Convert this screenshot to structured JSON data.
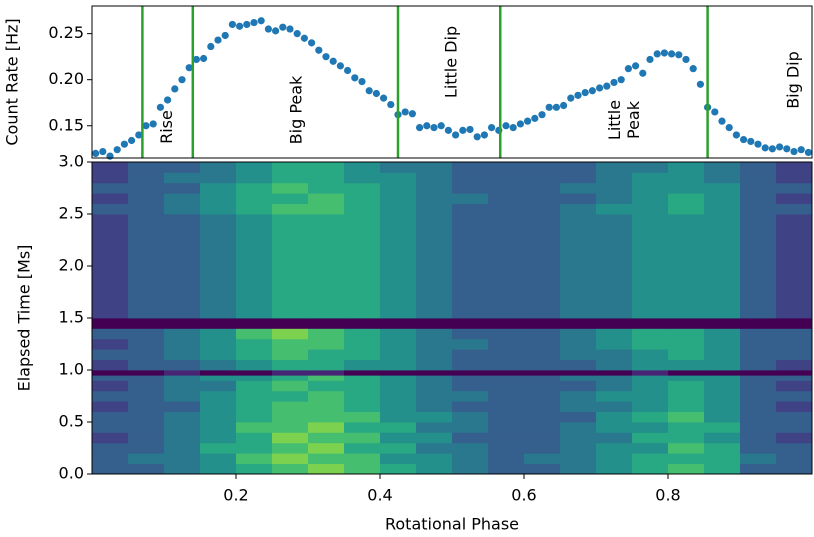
{
  "chart_data": [
    {
      "type": "scatter",
      "ylabel": "Count Rate [Hz]",
      "color": "#1f77b4",
      "x": [
        0.005,
        0.015,
        0.025,
        0.035,
        0.045,
        0.055,
        0.065,
        0.075,
        0.085,
        0.095,
        0.105,
        0.115,
        0.125,
        0.135,
        0.145,
        0.155,
        0.165,
        0.175,
        0.185,
        0.195,
        0.205,
        0.215,
        0.225,
        0.235,
        0.245,
        0.255,
        0.265,
        0.275,
        0.285,
        0.295,
        0.305,
        0.315,
        0.325,
        0.335,
        0.345,
        0.355,
        0.365,
        0.375,
        0.385,
        0.395,
        0.405,
        0.415,
        0.425,
        0.435,
        0.445,
        0.455,
        0.465,
        0.475,
        0.485,
        0.495,
        0.505,
        0.515,
        0.525,
        0.535,
        0.545,
        0.555,
        0.565,
        0.575,
        0.585,
        0.595,
        0.605,
        0.615,
        0.625,
        0.635,
        0.645,
        0.655,
        0.665,
        0.675,
        0.685,
        0.695,
        0.705,
        0.715,
        0.725,
        0.735,
        0.745,
        0.755,
        0.765,
        0.775,
        0.785,
        0.795,
        0.805,
        0.815,
        0.825,
        0.835,
        0.845,
        0.855,
        0.865,
        0.875,
        0.885,
        0.895,
        0.905,
        0.915,
        0.925,
        0.935,
        0.945,
        0.955,
        0.965,
        0.975,
        0.985,
        0.995
      ],
      "values": [
        0.12,
        0.122,
        0.117,
        0.124,
        0.13,
        0.134,
        0.14,
        0.15,
        0.152,
        0.17,
        0.178,
        0.19,
        0.2,
        0.213,
        0.222,
        0.223,
        0.236,
        0.243,
        0.248,
        0.26,
        0.258,
        0.26,
        0.262,
        0.264,
        0.255,
        0.253,
        0.257,
        0.255,
        0.25,
        0.245,
        0.24,
        0.232,
        0.225,
        0.22,
        0.215,
        0.21,
        0.202,
        0.198,
        0.188,
        0.185,
        0.18,
        0.173,
        0.162,
        0.165,
        0.163,
        0.148,
        0.15,
        0.148,
        0.15,
        0.145,
        0.14,
        0.145,
        0.146,
        0.138,
        0.14,
        0.148,
        0.145,
        0.15,
        0.148,
        0.152,
        0.155,
        0.158,
        0.162,
        0.17,
        0.17,
        0.172,
        0.18,
        0.183,
        0.186,
        0.188,
        0.191,
        0.193,
        0.197,
        0.2,
        0.212,
        0.215,
        0.207,
        0.222,
        0.228,
        0.229,
        0.228,
        0.227,
        0.222,
        0.212,
        0.195,
        0.17,
        0.165,
        0.155,
        0.148,
        0.14,
        0.135,
        0.133,
        0.13,
        0.126,
        0.125,
        0.127,
        0.125,
        0.122,
        0.124,
        0.121
      ],
      "xlim": [
        0,
        1
      ],
      "ylim": [
        0.115,
        0.28
      ],
      "yticks": [
        0.15,
        {
          "value": 0.2,
          "label": "0.20"
        },
        0.25
      ],
      "vlines": [
        0.07,
        0.14,
        0.425,
        0.567,
        0.855
      ],
      "vline_color": "#2ca02c",
      "annotations": [
        [
          "Rise"
        ],
        [
          "Big Peak"
        ],
        [
          "Little Dip"
        ],
        [
          "Little",
          "Peak"
        ],
        [
          "Big Dip"
        ]
      ]
    },
    {
      "type": "heatmap",
      "ylabel": "Elapsed Time [Ms]",
      "xlabel": "Rotational Phase",
      "colormap": "viridis",
      "zlim": [
        0,
        10
      ],
      "x_edges": [
        0,
        0.05,
        0.1,
        0.15,
        0.2,
        0.25,
        0.3,
        0.35,
        0.4,
        0.45,
        0.5,
        0.55,
        0.6,
        0.65,
        0.7,
        0.75,
        0.8,
        0.85,
        0.9,
        0.95,
        1.0
      ],
      "y_edges": [
        0,
        0.1,
        0.2,
        0.3,
        0.4,
        0.5,
        0.6,
        0.7,
        0.8,
        0.9,
        0.95,
        1.0,
        1.1,
        1.2,
        1.3,
        1.4,
        1.5,
        2.5,
        2.6,
        2.7,
        2.8,
        2.9,
        3.0
      ],
      "z": [
        [
          3,
          3,
          4,
          5,
          6,
          7,
          8,
          7,
          6,
          5,
          4,
          3,
          3,
          4,
          5,
          6,
          7,
          6,
          3,
          3
        ],
        [
          3,
          4,
          4,
          5,
          7,
          8,
          7,
          7,
          5,
          5,
          4,
          3,
          4,
          4,
          5,
          6,
          6,
          6,
          4,
          3
        ],
        [
          3,
          3,
          4,
          6,
          6,
          7,
          8,
          6,
          6,
          4,
          4,
          3,
          3,
          4,
          5,
          5,
          7,
          6,
          3,
          3
        ],
        [
          2,
          3,
          4,
          5,
          6,
          8,
          7,
          7,
          5,
          5,
          3,
          3,
          3,
          4,
          4,
          6,
          6,
          5,
          3,
          2
        ],
        [
          3,
          3,
          4,
          5,
          7,
          7,
          8,
          6,
          6,
          4,
          4,
          3,
          3,
          4,
          5,
          5,
          6,
          6,
          3,
          3
        ],
        [
          3,
          3,
          4,
          5,
          6,
          7,
          7,
          7,
          5,
          5,
          4,
          3,
          3,
          3,
          5,
          6,
          7,
          5,
          3,
          3
        ],
        [
          2,
          3,
          3,
          5,
          6,
          7,
          7,
          6,
          5,
          4,
          3,
          3,
          3,
          4,
          4,
          5,
          6,
          5,
          3,
          2
        ],
        [
          3,
          3,
          4,
          5,
          6,
          6,
          7,
          6,
          5,
          4,
          4,
          3,
          3,
          4,
          5,
          5,
          6,
          5,
          3,
          3
        ],
        [
          2,
          3,
          4,
          4,
          6,
          7,
          6,
          6,
          5,
          4,
          3,
          3,
          3,
          3,
          4,
          5,
          6,
          5,
          3,
          2
        ],
        [
          3,
          3,
          4,
          5,
          5,
          6,
          7,
          6,
          5,
          4,
          3,
          3,
          3,
          4,
          4,
          5,
          5,
          5,
          3,
          3
        ],
        [
          0,
          0,
          1,
          0,
          0,
          1,
          1,
          0,
          0,
          0,
          0,
          0,
          0,
          0,
          0,
          1,
          0,
          0,
          0,
          0
        ],
        [
          2,
          3,
          3,
          4,
          5,
          6,
          6,
          5,
          5,
          4,
          3,
          3,
          3,
          3,
          4,
          5,
          5,
          5,
          3,
          2
        ],
        [
          3,
          3,
          4,
          5,
          6,
          7,
          6,
          6,
          5,
          4,
          3,
          3,
          3,
          4,
          4,
          5,
          6,
          5,
          3,
          3
        ],
        [
          2,
          3,
          4,
          5,
          6,
          7,
          7,
          6,
          5,
          4,
          4,
          3,
          3,
          4,
          5,
          6,
          6,
          5,
          3,
          3
        ],
        [
          3,
          3,
          4,
          5,
          7,
          8,
          7,
          6,
          5,
          4,
          3,
          3,
          3,
          4,
          5,
          6,
          6,
          5,
          3,
          3
        ],
        [
          0,
          0,
          0,
          0,
          0,
          0,
          0,
          0,
          0,
          0,
          0,
          0,
          0,
          0,
          0,
          0,
          0,
          0,
          0,
          0
        ],
        [
          2,
          3,
          3,
          4,
          5,
          6,
          6,
          6,
          5,
          4,
          3,
          3,
          3,
          4,
          4,
          5,
          5,
          5,
          3,
          2
        ],
        [
          3,
          3,
          4,
          5,
          6,
          7,
          7,
          6,
          5,
          4,
          3,
          3,
          3,
          4,
          5,
          5,
          6,
          5,
          3,
          3
        ],
        [
          2,
          3,
          4,
          5,
          6,
          6,
          7,
          6,
          5,
          4,
          4,
          3,
          3,
          3,
          4,
          5,
          6,
          5,
          3,
          2
        ],
        [
          3,
          3,
          3,
          5,
          6,
          7,
          6,
          6,
          5,
          4,
          3,
          3,
          3,
          4,
          4,
          5,
          5,
          5,
          3,
          3
        ],
        [
          2,
          3,
          4,
          4,
          5,
          6,
          6,
          5,
          5,
          4,
          3,
          3,
          3,
          3,
          4,
          5,
          5,
          4,
          3,
          2
        ],
        [
          2,
          3,
          3,
          4,
          5,
          6,
          6,
          5,
          4,
          4,
          3,
          3,
          3,
          3,
          4,
          4,
          5,
          4,
          3,
          2
        ]
      ],
      "xlim": [
        0,
        1
      ],
      "ylim": [
        0,
        3
      ],
      "xticks": [
        0.2,
        0.4,
        0.6,
        0.8
      ],
      "yticks": [
        {
          "value": 0,
          "label": "0.0"
        },
        0.5,
        {
          "value": 1,
          "label": "1.0"
        },
        1.5,
        {
          "value": 2,
          "label": "2.0"
        },
        2.5,
        {
          "value": 3,
          "label": "3.0"
        }
      ]
    }
  ]
}
